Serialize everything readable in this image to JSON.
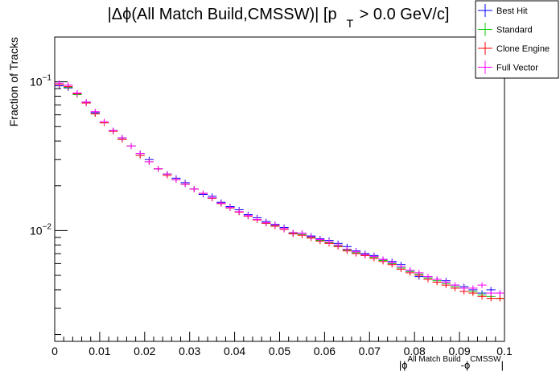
{
  "chart_data": {
    "type": "scatter",
    "title_parts": {
      "a": "|Δϕ(All Match Build,CMSSW)| [p",
      "sub": "T",
      "b": " > 0.0 GeV/c]"
    },
    "ylabel": "Fraction of Tracks",
    "xlabel_parts": {
      "open": "|ϕ",
      "sup1": "All Match Build",
      "mid": "-ϕ",
      "sup2": "CMSSW",
      "close": "|"
    },
    "xlim": [
      0,
      0.1
    ],
    "ylim": [
      0.0018,
      0.2
    ],
    "yscale": "log",
    "grid": false,
    "legend_position": "top-right",
    "xticks": [
      "0",
      "0.01",
      "0.02",
      "0.03",
      "0.04",
      "0.05",
      "0.06",
      "0.07",
      "0.08",
      "0.09",
      "0.1"
    ],
    "ytick_labels": [
      {
        "value": 0.1,
        "base": "10",
        "exp": "−1"
      },
      {
        "value": 0.01,
        "base": "10",
        "exp": "−2"
      }
    ],
    "bin_width": 0.002,
    "x": [
      0.001,
      0.003,
      0.005,
      0.007,
      0.009,
      0.011,
      0.013,
      0.015,
      0.017,
      0.019,
      0.021,
      0.023,
      0.025,
      0.027,
      0.029,
      0.031,
      0.033,
      0.035,
      0.037,
      0.039,
      0.041,
      0.043,
      0.045,
      0.047,
      0.049,
      0.051,
      0.053,
      0.055,
      0.057,
      0.059,
      0.061,
      0.063,
      0.065,
      0.067,
      0.069,
      0.071,
      0.073,
      0.075,
      0.077,
      0.079,
      0.081,
      0.083,
      0.085,
      0.087,
      0.089,
      0.091,
      0.093,
      0.095,
      0.097,
      0.099
    ],
    "series": [
      {
        "name": "Best Hit",
        "color": "#0000ff",
        "values": [
          0.094,
          0.091,
          0.084,
          0.073,
          0.062,
          0.053,
          0.047,
          0.042,
          0.037,
          0.033,
          0.03,
          0.026,
          0.024,
          0.0225,
          0.021,
          0.019,
          0.0175,
          0.017,
          0.0155,
          0.0145,
          0.0138,
          0.0128,
          0.0122,
          0.0115,
          0.011,
          0.0105,
          0.0096,
          0.0096,
          0.0092,
          0.0088,
          0.0086,
          0.0082,
          0.0078,
          0.0073,
          0.007,
          0.0068,
          0.0064,
          0.0062,
          0.0059,
          0.0054,
          0.0049,
          0.0049,
          0.0047,
          0.0046,
          0.0043,
          0.0042,
          0.004,
          0.0038,
          0.004,
          0.0038
        ]
      },
      {
        "name": "Standard",
        "color": "#00c800",
        "values": [
          0.096,
          0.092,
          0.082,
          0.072,
          0.061,
          0.053,
          0.0465,
          0.041,
          0.037,
          0.032,
          0.029,
          0.026,
          0.024,
          0.022,
          0.0205,
          0.019,
          0.0178,
          0.0165,
          0.0152,
          0.0142,
          0.0133,
          0.0125,
          0.0118,
          0.0112,
          0.0108,
          0.0102,
          0.0096,
          0.0094,
          0.009,
          0.0086,
          0.0083,
          0.0079,
          0.0074,
          0.0071,
          0.0069,
          0.0066,
          0.0063,
          0.006,
          0.0056,
          0.0053,
          0.0051,
          0.0048,
          0.0046,
          0.0044,
          0.0042,
          0.0041,
          0.0039,
          0.0037,
          0.0036,
          0.0035
        ]
      },
      {
        "name": "Clone Engine",
        "color": "#ff0000",
        "values": [
          0.096,
          0.093,
          0.083,
          0.072,
          0.061,
          0.053,
          0.0465,
          0.041,
          0.037,
          0.032,
          0.029,
          0.026,
          0.0235,
          0.022,
          0.0205,
          0.019,
          0.0178,
          0.0165,
          0.0152,
          0.0142,
          0.0133,
          0.0125,
          0.0118,
          0.0112,
          0.0107,
          0.0102,
          0.0095,
          0.0093,
          0.0089,
          0.0085,
          0.0082,
          0.0078,
          0.0073,
          0.007,
          0.0068,
          0.0065,
          0.0062,
          0.0059,
          0.0055,
          0.0052,
          0.005,
          0.0047,
          0.0045,
          0.0043,
          0.0041,
          0.0039,
          0.0038,
          0.0036,
          0.0035,
          0.0035
        ]
      },
      {
        "name": "Full Vector",
        "color": "#ff00ff",
        "values": [
          0.098,
          0.095,
          0.084,
          0.073,
          0.063,
          0.054,
          0.047,
          0.042,
          0.037,
          0.033,
          0.029,
          0.026,
          0.024,
          0.022,
          0.0205,
          0.019,
          0.0178,
          0.0166,
          0.0153,
          0.0143,
          0.0134,
          0.0126,
          0.0119,
          0.0113,
          0.0109,
          0.0103,
          0.0097,
          0.0096,
          0.0091,
          0.0087,
          0.0084,
          0.008,
          0.0075,
          0.0072,
          0.0069,
          0.0067,
          0.0064,
          0.0061,
          0.0057,
          0.0054,
          0.0052,
          0.0049,
          0.0047,
          0.0045,
          0.0043,
          0.0041,
          0.0041,
          0.0043,
          0.0038,
          0.0038
        ]
      }
    ]
  }
}
